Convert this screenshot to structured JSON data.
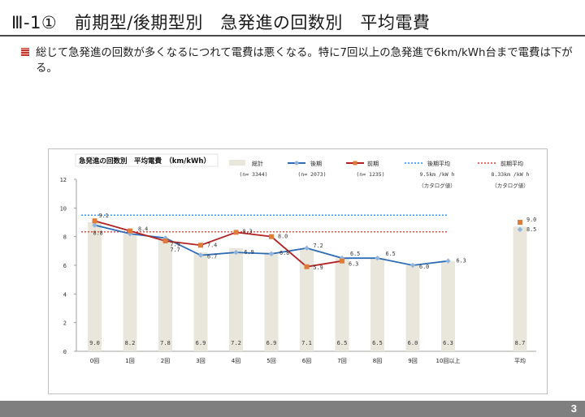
{
  "page": {
    "title": "Ⅲ-1①　前期型/後期型別　急発進の回数別　平均電費",
    "bullet": "総じて急発進の回数が多くなるにつれて電費は悪くなる。特に7回以上の急発進で6km/kWh台まで電費は下がる。",
    "page_number": "3"
  },
  "colors": {
    "bar": "#e9e7dc",
    "late": "#2e6cb5",
    "late_marker": "#8fb4de",
    "early": "#b22222",
    "early_marker": "#e07b39",
    "late_avg_line": "#1e90ff",
    "early_avg_line": "#e0403a"
  },
  "chart_data": {
    "type": "bar",
    "title": "急発進の回数別　平均電費　（km/kWh）",
    "categories": [
      "0回",
      "1回",
      "2回",
      "3回",
      "4回",
      "5回",
      "6回",
      "7回",
      "8回",
      "9回",
      "10回以上"
    ],
    "avg_category": "平均",
    "ylim": [
      0,
      12
    ],
    "yticks": [
      0,
      2,
      4,
      6,
      8,
      10,
      12
    ],
    "legend": [
      {
        "key": "total",
        "name": "総計",
        "n": "(n= 3344)",
        "note": ""
      },
      {
        "key": "late",
        "name": "後期",
        "n": "(n= 2073)",
        "note": ""
      },
      {
        "key": "early",
        "name": "前期",
        "n": "(n= 1235)",
        "note": ""
      },
      {
        "key": "late_avg",
        "name": "後期平均",
        "n": "9.5km /kW h",
        "note": "（カタログ値）"
      },
      {
        "key": "early_avg",
        "name": "前期平均",
        "n": "8.33km /kW h",
        "note": "（カタログ値）"
      }
    ],
    "series": [
      {
        "name": "総計",
        "type": "bar",
        "values": [
          9.0,
          8.2,
          7.8,
          6.9,
          7.2,
          6.9,
          7.1,
          6.5,
          6.5,
          6.0,
          6.3
        ],
        "avg": 8.7,
        "labels": [
          "9.0",
          "8.2",
          "7.8",
          "6.9",
          "7.2",
          "6.9",
          "7.1",
          "6.5",
          "6.5",
          "6.0",
          "6.3"
        ],
        "avg_label": "8.7"
      },
      {
        "name": "後期",
        "type": "line",
        "values": [
          8.8,
          8.2,
          7.9,
          6.7,
          6.9,
          6.8,
          7.2,
          6.5,
          6.5,
          6.0,
          6.3
        ],
        "avg": 8.5,
        "labels": [
          "8.8",
          "",
          "7.9",
          "6.7",
          "6.9",
          "6.8",
          "7.2",
          "6.5",
          "6.5",
          "6.0",
          "6.3"
        ],
        "avg_label": "8.5"
      },
      {
        "name": "前期",
        "type": "line",
        "values": [
          9.1,
          8.4,
          7.7,
          7.4,
          8.3,
          8.0,
          5.9,
          6.3,
          null,
          null,
          null
        ],
        "avg": 9.0,
        "labels": [
          "9.1",
          "8.4",
          "7.7",
          "7.4",
          "8.3",
          "8.0",
          "5.9",
          "6.3",
          "",
          "",
          ""
        ],
        "avg_label": "9.0"
      }
    ],
    "reference_lines": [
      {
        "name": "後期平均",
        "value": 9.5
      },
      {
        "name": "前期平均",
        "value": 8.33
      }
    ]
  }
}
